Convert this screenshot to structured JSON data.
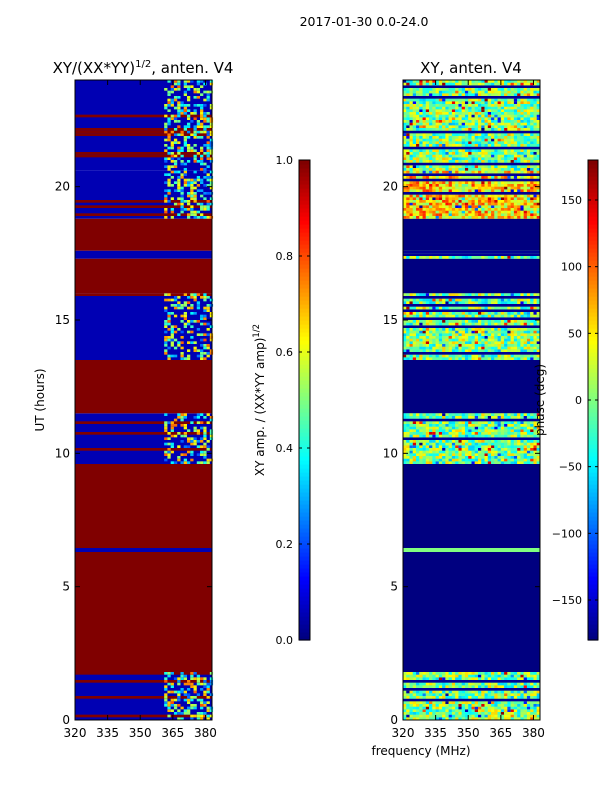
{
  "suptitle": "2017-01-30 0.0-24.0",
  "chart_data": [
    {
      "type": "heatmap",
      "title": "XY/(XX*YY)",
      "title_exponent": "1/2",
      "title_suffix": ", anten. V4",
      "xlabel": "",
      "ylabel": "UT (hours)",
      "xlim": [
        320,
        383
      ],
      "ylim": [
        0,
        24
      ],
      "x_ticks": [
        320,
        335,
        350,
        365,
        380
      ],
      "y_ticks": [
        0,
        5,
        10,
        15,
        20
      ],
      "colorbar": {
        "label": "XY amp. / (XX*YY amp)",
        "label_exponent": "1/2",
        "range": [
          0.0,
          1.0
        ],
        "ticks": [
          0.0,
          0.2,
          0.4,
          0.6,
          0.8,
          1.0
        ],
        "tick_labels": [
          "0.0",
          "0.2",
          "0.4",
          "0.6",
          "0.8",
          "1.0"
        ],
        "colormap": "jet"
      },
      "bands": [
        {
          "from": 0.0,
          "to": 1.8,
          "value": 0.05,
          "variable_above_freq": 361
        },
        {
          "from": 1.8,
          "to": 6.3,
          "value": 1.0
        },
        {
          "from": 6.3,
          "to": 6.45,
          "value": 0.05
        },
        {
          "from": 6.45,
          "to": 9.6,
          "value": 1.0
        },
        {
          "from": 9.6,
          "to": 11.5,
          "value": 0.05,
          "variable_above_freq": 361
        },
        {
          "from": 11.5,
          "to": 13.5,
          "value": 1.0
        },
        {
          "from": 13.5,
          "to": 16.0,
          "value": 0.05,
          "variable_above_freq": 361
        },
        {
          "from": 16.0,
          "to": 17.3,
          "value": 1.0
        },
        {
          "from": 17.3,
          "to": 17.6,
          "value": 0.05
        },
        {
          "from": 17.6,
          "to": 18.8,
          "value": 1.0
        },
        {
          "from": 18.8,
          "to": 20.6,
          "value": 0.05,
          "variable_above_freq": 361
        },
        {
          "from": 20.6,
          "to": 24.0,
          "value": 0.05,
          "variable_above_freq": 361
        }
      ]
    },
    {
      "type": "heatmap",
      "title": "XY, anten. V4",
      "xlabel": "frequency (MHz)",
      "ylabel": "",
      "xlim": [
        320,
        383
      ],
      "ylim": [
        0,
        24
      ],
      "x_ticks": [
        320,
        335,
        350,
        365,
        380
      ],
      "y_ticks": [
        0,
        5,
        10,
        15,
        20
      ],
      "colorbar": {
        "label": "phase (deg)",
        "range": [
          -180,
          180
        ],
        "ticks": [
          -150,
          -100,
          -50,
          0,
          50,
          100,
          150
        ],
        "tick_labels": [
          "−150",
          "−100",
          "−50",
          "0",
          "50",
          "100",
          "150"
        ],
        "colormap": "jet"
      },
      "bands": [
        {
          "from": 0.0,
          "to": 1.8,
          "value": 0,
          "variable": true
        },
        {
          "from": 1.8,
          "to": 6.3,
          "value": -180
        },
        {
          "from": 6.3,
          "to": 6.45,
          "value": 0
        },
        {
          "from": 6.45,
          "to": 9.6,
          "value": -180
        },
        {
          "from": 9.6,
          "to": 11.5,
          "value": 0,
          "variable": true
        },
        {
          "from": 11.5,
          "to": 13.5,
          "value": -180
        },
        {
          "from": 13.5,
          "to": 16.0,
          "value": 0,
          "variable": true
        },
        {
          "from": 16.0,
          "to": 17.3,
          "value": -180
        },
        {
          "from": 17.3,
          "to": 17.6,
          "value": 0,
          "variable": true
        },
        {
          "from": 17.6,
          "to": 18.8,
          "value": -180
        },
        {
          "from": 18.8,
          "to": 20.6,
          "value": 60,
          "variable": true
        },
        {
          "from": 20.6,
          "to": 24.0,
          "value": 0,
          "variable": true
        }
      ]
    }
  ]
}
